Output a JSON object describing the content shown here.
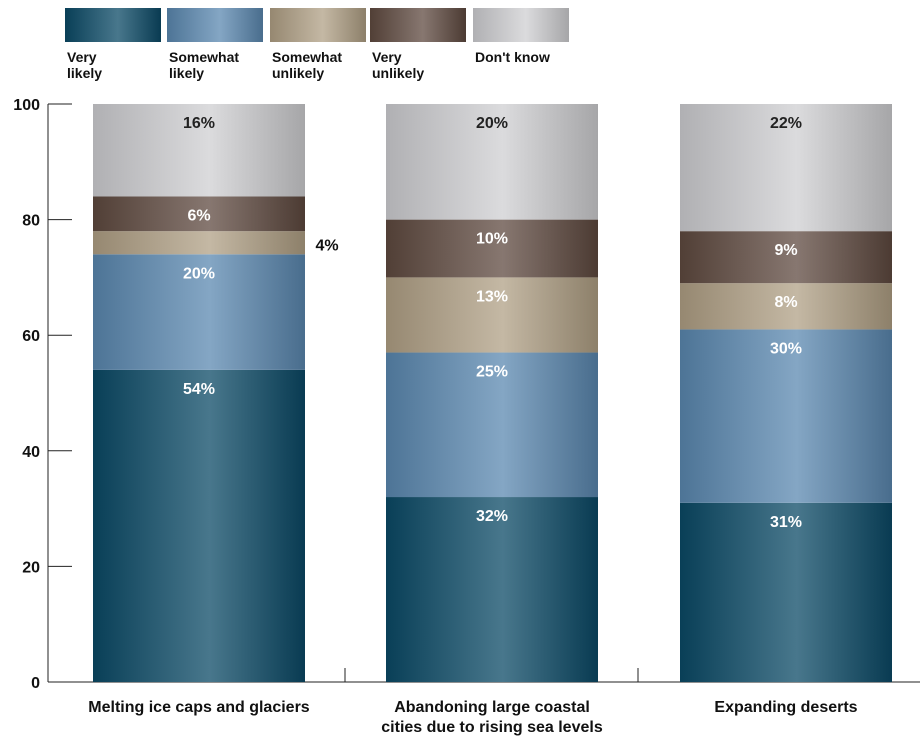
{
  "chart_data": {
    "type": "bar",
    "stacked": true,
    "categories": [
      [
        "Melting ice caps and glaciers"
      ],
      [
        "Abandoning large coastal",
        "cities due to rising sea levels"
      ],
      [
        "Expanding deserts"
      ]
    ],
    "series": [
      {
        "name": [
          "Very",
          "likely"
        ],
        "values": [
          54,
          32,
          31
        ],
        "labels": [
          "54%",
          "32%",
          "31%"
        ],
        "color": "#0b4a66",
        "text_color": "#ffffff"
      },
      {
        "name": [
          "Somewhat",
          "likely"
        ],
        "values": [
          20,
          25,
          30
        ],
        "labels": [
          "20%",
          "25%",
          "30%"
        ],
        "color": "#5b88b0",
        "text_color": "#ffffff"
      },
      {
        "name": [
          "Somewhat",
          "unlikely"
        ],
        "values": [
          4,
          13,
          8
        ],
        "labels": [
          "4%",
          "13%",
          "8%"
        ],
        "color": "#b0a085",
        "text_color": "#ffffff"
      },
      {
        "name": [
          "Very",
          "unlikely"
        ],
        "values": [
          6,
          10,
          9
        ],
        "labels": [
          "6%",
          "10%",
          "9%"
        ],
        "color": "#5f4a40",
        "text_color": "#ffffff"
      },
      {
        "name": [
          "Don't know"
        ],
        "values": [
          16,
          20,
          22
        ],
        "labels": [
          "16%",
          "20%",
          "22%"
        ],
        "color": "#cfcfd2",
        "text_color": "#222222"
      }
    ],
    "y_ticks": [
      "0",
      "20",
      "40",
      "60",
      "80",
      "100"
    ],
    "ylim": [
      0,
      100
    ],
    "legend_position": "top-left"
  }
}
